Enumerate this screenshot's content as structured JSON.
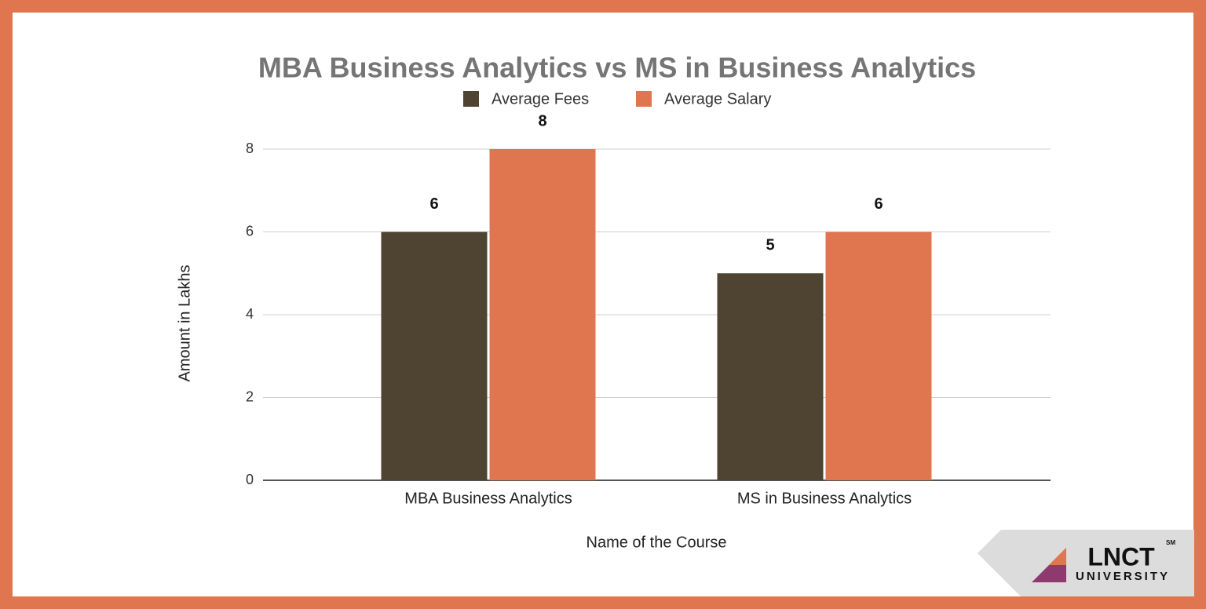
{
  "chart_data": {
    "type": "bar",
    "title": "MBA Business Analytics vs MS in Business Analytics",
    "x_label": "Name of the Course",
    "y_label": "Amount in Lakhs",
    "categories": [
      "MBA Business Analytics",
      "MS in Business Analytics"
    ],
    "series": [
      {
        "name": "Average Fees",
        "color": "#4f4331",
        "values": [
          6,
          5
        ]
      },
      {
        "name": "Average Salary",
        "color": "#e07650",
        "values": [
          8,
          6
        ]
      }
    ],
    "ylim": [
      0,
      8
    ],
    "yticks": [
      0,
      2,
      4,
      6,
      8
    ],
    "grid": true,
    "legend": "top",
    "data_labels": true
  },
  "logo": {
    "name": "LNCT",
    "subtitle": "UNIVERSITY",
    "mark": "SM"
  }
}
